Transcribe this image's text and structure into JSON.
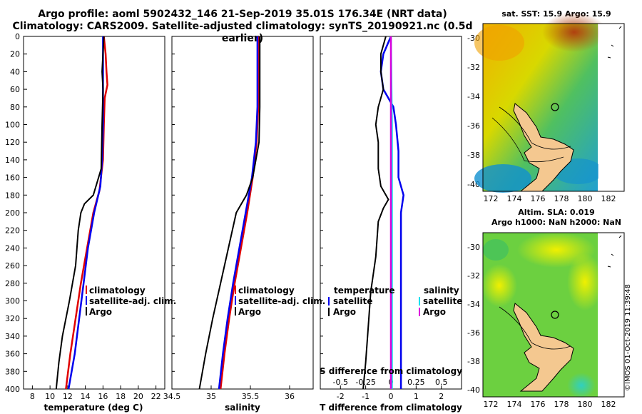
{
  "header": {
    "line1": "Argo profile: aoml 5902432_146 21-Sep-2019 35.01S 176.34E (NRT data)",
    "line2": "Climatology: CARS2009. Satellite-adjusted climatology: synTS_20190921.nc (0.5d earlier)"
  },
  "maps": {
    "sst_title": "sat. SST: 15.9 Argo: 15.9",
    "sla_title": "Altim. SLA: 0.019",
    "h_title": "Argo h1000: NaN h2000: NaN",
    "lat_ticks": [
      "-30",
      "-32",
      "-34",
      "-36",
      "-38",
      "-40"
    ],
    "lon_ticks": [
      "172",
      "174",
      "176",
      "178",
      "180",
      "182"
    ]
  },
  "watermark": "©IMOS 01-Oct-2019 11:39:48",
  "colors": {
    "climatology": "#e00000",
    "satellite": "#0000ee",
    "argo": "#000000",
    "sat_salinity": "#00e0ee",
    "argo_salinity": "#dd00dd",
    "land": "#f4c890"
  },
  "chart_data": [
    {
      "type": "line",
      "name": "temperature",
      "xlabel": "temperature (deg C)",
      "ylabel": "",
      "xlim": [
        7,
        23
      ],
      "ylim": [
        400,
        0
      ],
      "xticks": [
        "8",
        "10",
        "12",
        "14",
        "16",
        "18",
        "20",
        "22"
      ],
      "yticks": [
        "0",
        "20",
        "40",
        "60",
        "80",
        "100",
        "120",
        "140",
        "160",
        "180",
        "200",
        "220",
        "240",
        "260",
        "280",
        "300",
        "320",
        "340",
        "360",
        "380",
        "400"
      ],
      "legend": [
        "climatology",
        "satellite-adj. clim.",
        "Argo"
      ],
      "series": [
        {
          "name": "climatology",
          "depth": [
            0,
            20,
            40,
            55,
            70,
            100,
            140,
            175,
            200,
            240,
            280,
            320,
            360,
            400
          ],
          "values": [
            16.1,
            16.3,
            16.4,
            16.5,
            16.2,
            16.1,
            16.0,
            15.6,
            14.9,
            14.2,
            13.5,
            12.9,
            12.3,
            11.8
          ]
        },
        {
          "name": "satellite-adj. clim.",
          "depth": [
            0,
            20,
            40,
            60,
            80,
            100,
            140,
            170,
            200,
            240,
            280,
            320,
            360,
            400
          ],
          "values": [
            16.0,
            16.0,
            16.0,
            16.0,
            16.0,
            16.0,
            15.9,
            15.7,
            15.0,
            14.3,
            13.8,
            13.3,
            12.8,
            12.1
          ]
        },
        {
          "name": "Argo",
          "depth": [
            0,
            40,
            60,
            100,
            150,
            180,
            190,
            200,
            220,
            260,
            300,
            340,
            370,
            400
          ],
          "values": [
            16.1,
            15.9,
            16.0,
            15.9,
            15.8,
            14.9,
            13.9,
            13.5,
            13.2,
            12.9,
            12.2,
            11.4,
            11.0,
            10.7
          ]
        }
      ]
    },
    {
      "type": "line",
      "name": "salinity",
      "xlabel": "salinity",
      "ylabel": "",
      "xlim": [
        34.5,
        36.3
      ],
      "ylim": [
        400,
        0
      ],
      "xticks": [
        "34.5",
        "35",
        "35.5",
        "36"
      ],
      "legend": [
        "climatology",
        "satellite-adj. clim.",
        "Argo"
      ],
      "series": [
        {
          "name": "climatology",
          "depth": [
            0,
            40,
            80,
            120,
            160,
            200,
            240,
            280,
            320,
            360,
            400
          ],
          "values": [
            35.61,
            35.61,
            35.6,
            35.58,
            35.53,
            35.46,
            35.38,
            35.3,
            35.23,
            35.17,
            35.12
          ]
        },
        {
          "name": "satellite-adj. clim.",
          "depth": [
            0,
            40,
            80,
            120,
            160,
            200,
            240,
            280,
            320,
            360,
            400
          ],
          "values": [
            35.59,
            35.59,
            35.59,
            35.57,
            35.52,
            35.44,
            35.36,
            35.28,
            35.21,
            35.15,
            35.1
          ]
        },
        {
          "name": "Argo",
          "depth": [
            0,
            40,
            80,
            120,
            160,
            180,
            200,
            240,
            280,
            320,
            360,
            400
          ],
          "values": [
            35.62,
            35.62,
            35.62,
            35.61,
            35.53,
            35.45,
            35.32,
            35.22,
            35.12,
            35.02,
            34.93,
            34.85
          ]
        }
      ]
    },
    {
      "type": "line",
      "name": "difference from climatology",
      "xlabel": "T difference from climatology",
      "top_label": "S difference from climatology",
      "xlim": [
        -2.8,
        2.8
      ],
      "ylim": [
        400,
        0
      ],
      "xticks": [
        "-2",
        "-1",
        "0",
        "1",
        "2"
      ],
      "s_ticks": [
        "-0.5",
        "-0.25",
        "0",
        "0.25",
        "0.5"
      ],
      "legend_temperature": {
        "title": "temperature",
        "items": [
          "satellite",
          "Argo"
        ]
      },
      "legend_salinity": {
        "title": "salinity",
        "items": [
          "satellite",
          "Argo"
        ]
      },
      "series": [
        {
          "name": "T satellite",
          "depth": [
            0,
            20,
            40,
            60,
            80,
            100,
            130,
            160,
            180,
            200,
            240,
            280,
            320,
            360,
            400
          ],
          "values": [
            0.0,
            -0.3,
            -0.4,
            -0.3,
            0.1,
            0.2,
            0.3,
            0.3,
            0.5,
            0.4,
            0.4,
            0.4,
            0.4,
            0.4,
            0.4
          ]
        },
        {
          "name": "T Argo",
          "depth": [
            0,
            20,
            40,
            60,
            80,
            100,
            120,
            150,
            170,
            185,
            195,
            210,
            250,
            290,
            330,
            370,
            400
          ],
          "values": [
            -0.2,
            -0.4,
            -0.4,
            -0.3,
            -0.5,
            -0.6,
            -0.5,
            -0.5,
            -0.4,
            -0.1,
            -0.3,
            -0.5,
            -0.6,
            -0.8,
            -0.9,
            -1.0,
            -1.1
          ]
        },
        {
          "name": "S satellite",
          "depth": [
            0,
            100,
            200,
            300,
            400
          ],
          "values": [
            0.0,
            0.01,
            0.01,
            0.01,
            0.01
          ]
        },
        {
          "name": "S Argo",
          "depth": [
            0,
            100,
            200,
            300,
            400
          ],
          "values": [
            0.0,
            0.0,
            0.0,
            0.0,
            0.0
          ]
        }
      ]
    }
  ]
}
